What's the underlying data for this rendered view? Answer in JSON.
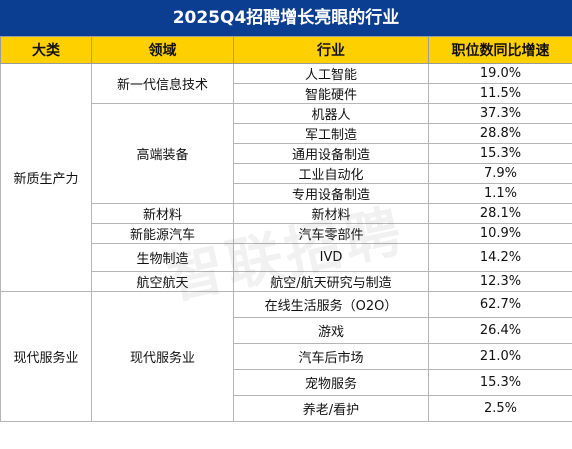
{
  "title": "2025Q4招聘增长亮眼的行业",
  "headers": [
    "大类",
    "领域",
    "行业",
    "职位数同比增速"
  ],
  "groups": [
    {
      "category": "新质生产力",
      "fields": [
        {
          "field": "新一代信息技术",
          "rows": [
            {
              "industry": "人工智能",
              "growth": "19.0%"
            },
            {
              "industry": "智能硬件",
              "growth": "11.5%"
            }
          ]
        },
        {
          "field": "高端装备",
          "rows": [
            {
              "industry": "机器人",
              "growth": "37.3%"
            },
            {
              "industry": "军工制造",
              "growth": "28.8%"
            },
            {
              "industry": "通用设备制造",
              "growth": "15.3%"
            },
            {
              "industry": "工业自动化",
              "growth": "7.9%"
            },
            {
              "industry": "专用设备制造",
              "growth": "1.1%"
            }
          ]
        },
        {
          "field": "新材料",
          "rows": [
            {
              "industry": "新材料",
              "growth": "28.1%"
            }
          ]
        },
        {
          "field": "新能源汽车",
          "rows": [
            {
              "industry": "汽车零部件",
              "growth": "10.9%"
            }
          ]
        },
        {
          "field": "生物制造",
          "rows": [
            {
              "industry": "IVD",
              "growth": "14.2%"
            }
          ]
        },
        {
          "field": "航空航天",
          "rows": [
            {
              "industry": "航空/航天研究与制造",
              "growth": "12.3%"
            }
          ]
        }
      ]
    },
    {
      "category": "现代服务业",
      "fields": [
        {
          "field": "现代服务业",
          "rows": [
            {
              "industry": "在线生活服务（O2O）",
              "growth": "62.7%"
            },
            {
              "industry": "游戏",
              "growth": "26.4%"
            },
            {
              "industry": "汽车后市场",
              "growth": "21.0%"
            },
            {
              "industry": "宠物服务",
              "growth": "15.3%"
            },
            {
              "industry": "养老/看护",
              "growth": "2.5%"
            }
          ]
        }
      ]
    }
  ],
  "colors": {
    "title_bg": "#0b3d91",
    "header_bg": "#ffd000"
  },
  "watermark": "智联招聘"
}
